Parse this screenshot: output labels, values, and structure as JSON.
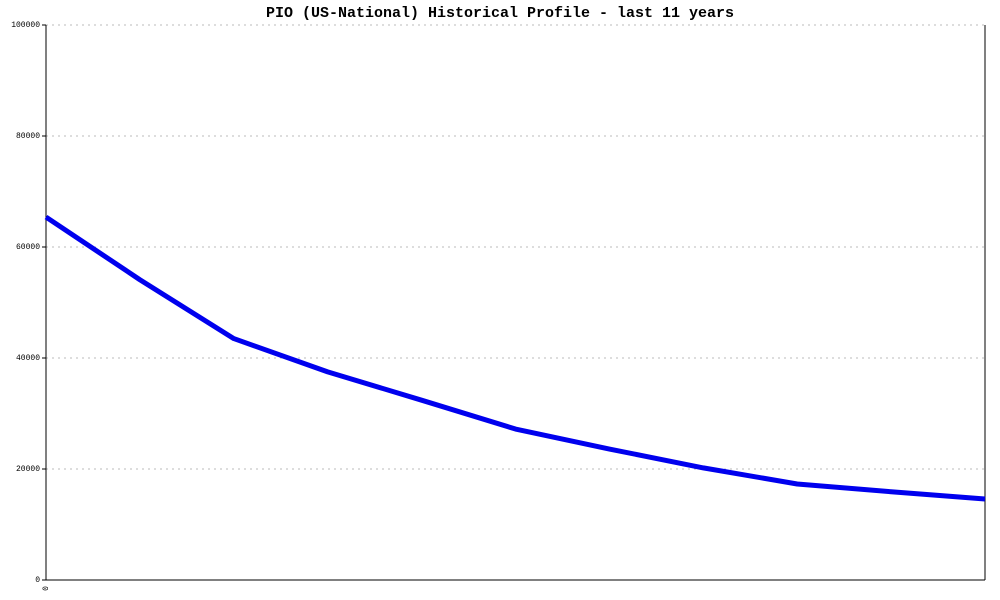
{
  "chart_data": {
    "type": "line",
    "title": "PIO (US-National) Historical Profile - last 11 years",
    "categories": [
      "0",
      null,
      null,
      null,
      null,
      null,
      null,
      null,
      null,
      null,
      null
    ],
    "values": [
      65400,
      54100,
      43500,
      37500,
      32400,
      27200,
      23600,
      20200,
      17300,
      15900,
      14600
    ],
    "color": "#0000ee",
    "ylim": [
      0,
      100000
    ],
    "yticks": [
      0,
      20000,
      40000,
      60000,
      80000,
      100000
    ],
    "grid": true
  }
}
